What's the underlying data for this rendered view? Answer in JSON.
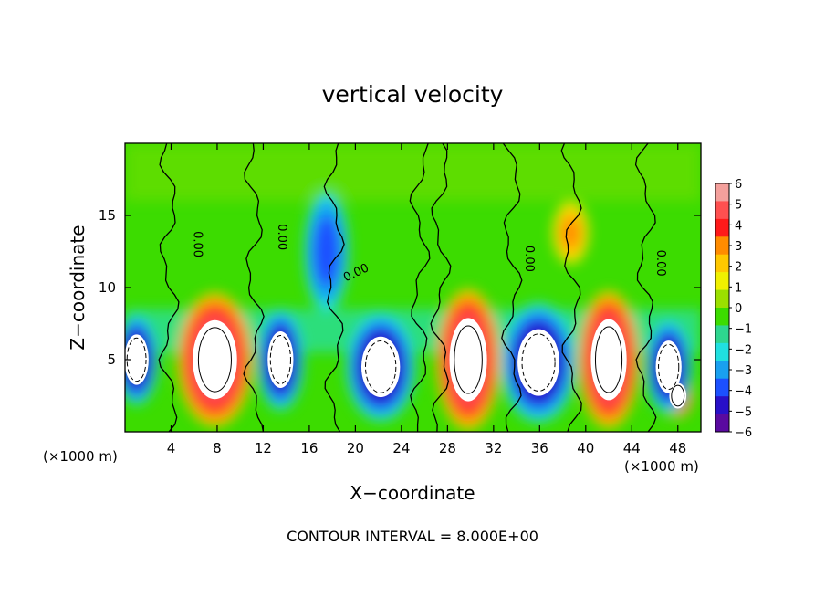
{
  "chart_data": {
    "type": "heatmap",
    "title": "vertical velocity",
    "xlabel": "X−coordinate",
    "ylabel": "Z−coordinate",
    "x_unit_left": "(×1000 m)",
    "x_unit_right": "(×1000 m)",
    "footer": "CONTOUR INTERVAL = 8.000E+00",
    "xlim": [
      0,
      50
    ],
    "ylim": [
      0,
      20
    ],
    "x_ticks": [
      4,
      8,
      12,
      16,
      20,
      24,
      28,
      32,
      36,
      40,
      44,
      48
    ],
    "y_ticks": [
      5,
      10,
      15
    ],
    "contour_labels": [
      {
        "text": "0.00",
        "x": 6,
        "y": 13,
        "vertical": true
      },
      {
        "text": "0.00",
        "x": 13.3,
        "y": 13.5,
        "vertical": true
      },
      {
        "text": "0.00",
        "x": 20.2,
        "y": 10.8,
        "vertical": false
      },
      {
        "text": "0.00",
        "x": 34.8,
        "y": 12.0,
        "vertical": true
      },
      {
        "text": "0.00",
        "x": 46.2,
        "y": 11.7,
        "vertical": true
      }
    ],
    "colorbar": {
      "ticks": [
        "6",
        "5",
        "4",
        "3",
        "2",
        "1",
        "0",
        "−1",
        "−2",
        "−3",
        "−4",
        "−5",
        "−6"
      ],
      "colors": [
        "#f4a09c",
        "#ff5050",
        "#ff1a1a",
        "#ff8c00",
        "#ffc800",
        "#f0f000",
        "#9be000",
        "#3cdc00",
        "#2ed68f",
        "#20e0e0",
        "#19a0f0",
        "#1c50ff",
        "#2810c8",
        "#5a0aa0"
      ]
    },
    "features": [
      {
        "kind": "updraft",
        "x": 7.8,
        "z": 5.0,
        "rx": 2.6,
        "rz": 3.7
      },
      {
        "kind": "updraft",
        "x": 29.8,
        "z": 5.0,
        "rx": 2.2,
        "rz": 3.9
      },
      {
        "kind": "updraft",
        "x": 42.0,
        "z": 5.0,
        "rx": 2.1,
        "rz": 3.8
      },
      {
        "kind": "updraft",
        "x": 48.0,
        "z": 2.5,
        "rx": 1.0,
        "rz": 1.2
      },
      {
        "kind": "downdraft",
        "x": 1.0,
        "z": 5.0,
        "rx": 1.5,
        "rz": 2.5
      },
      {
        "kind": "downdraft",
        "x": 13.5,
        "z": 5.0,
        "rx": 1.6,
        "rz": 2.8
      },
      {
        "kind": "downdraft",
        "x": 22.2,
        "z": 4.5,
        "rx": 2.4,
        "rz": 3.0
      },
      {
        "kind": "downdraft",
        "x": 35.9,
        "z": 4.8,
        "rx": 2.6,
        "rz": 3.3
      },
      {
        "kind": "downdraft",
        "x": 47.2,
        "z": 4.5,
        "rx": 1.6,
        "rz": 2.6
      },
      {
        "kind": "weak-down",
        "x": 17.5,
        "z": 12.5,
        "rx": 1.6,
        "rz": 3.5
      },
      {
        "kind": "weak-up",
        "x": 38.7,
        "z": 13.8,
        "rx": 1.3,
        "rz": 1.8
      }
    ]
  }
}
